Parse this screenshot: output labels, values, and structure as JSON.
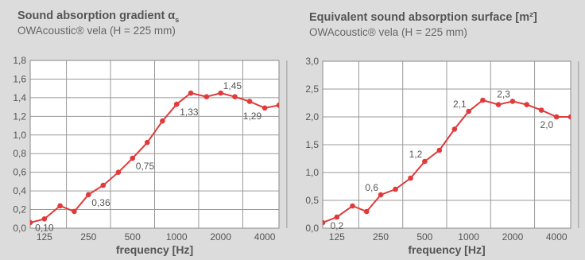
{
  "chart_data": [
    {
      "type": "line",
      "title": "Sound absorption gradient α",
      "title_subscript": "s",
      "subtitle": "OWAcoustic® vela (H = 225 mm)",
      "xlabel": "frequency [Hz]",
      "ylabel": "",
      "x_scale": "log",
      "xlim": [
        100,
        5000
      ],
      "ylim": [
        0,
        1.8
      ],
      "yticks": [
        0,
        0.2,
        0.4,
        0.6,
        0.8,
        1.0,
        1.2,
        1.4,
        1.6,
        1.8
      ],
      "ytick_labels": [
        "0,0",
        "0,2",
        "0,4",
        "0,6",
        "0,8",
        "1,0",
        "1,2",
        "1,4",
        "1,6",
        "1,8"
      ],
      "xticks": [
        125,
        250,
        500,
        1000,
        2000,
        4000
      ],
      "xtick_labels": [
        "125",
        "250",
        "500",
        "1000",
        "2000",
        "4000"
      ],
      "grid": true,
      "line_color": "#e03a3a",
      "x": [
        100,
        125,
        160,
        200,
        250,
        315,
        400,
        500,
        630,
        800,
        1000,
        1250,
        1600,
        2000,
        2500,
        3150,
        4000,
        5000
      ],
      "y": [
        0.06,
        0.1,
        0.24,
        0.18,
        0.36,
        0.46,
        0.6,
        0.75,
        0.92,
        1.15,
        1.33,
        1.45,
        1.41,
        1.45,
        1.41,
        1.36,
        1.29,
        1.32
      ],
      "annotations": [
        {
          "x": 125,
          "y": 0.1,
          "text": "0,10",
          "pos": "below"
        },
        {
          "x": 250,
          "y": 0.36,
          "text": "0,36",
          "pos": "below-right"
        },
        {
          "x": 500,
          "y": 0.75,
          "text": "0,75",
          "pos": "below-right"
        },
        {
          "x": 1000,
          "y": 1.33,
          "text": "1,33",
          "pos": "below-right"
        },
        {
          "x": 2000,
          "y": 1.45,
          "text": "1,45",
          "pos": "above-right"
        },
        {
          "x": 4000,
          "y": 1.29,
          "text": "1,29",
          "pos": "below-left"
        }
      ]
    },
    {
      "type": "line",
      "title": "Equivalent sound absorption surface [m²]",
      "subtitle": "OWAcoustic® vela (H = 225 mm)",
      "xlabel": "frequency [Hz]",
      "ylabel": "",
      "x_scale": "log",
      "xlim": [
        100,
        5000
      ],
      "ylim": [
        0,
        3.0
      ],
      "yticks": [
        0,
        0.5,
        1.0,
        1.5,
        2.0,
        2.5,
        3.0
      ],
      "ytick_labels": [
        "0,0",
        "0,5",
        "1,0",
        "1,5",
        "2,0",
        "2,5",
        "3,0"
      ],
      "xticks": [
        125,
        250,
        500,
        1000,
        2000,
        4000
      ],
      "xtick_labels": [
        "125",
        "250",
        "500",
        "1000",
        "2000",
        "4000"
      ],
      "grid": true,
      "line_color": "#e03a3a",
      "x": [
        100,
        125,
        160,
        200,
        250,
        315,
        400,
        500,
        630,
        800,
        1000,
        1250,
        1600,
        2000,
        2500,
        3150,
        4000,
        5000
      ],
      "y": [
        0.1,
        0.2,
        0.4,
        0.3,
        0.6,
        0.7,
        0.9,
        1.2,
        1.4,
        1.78,
        2.1,
        2.3,
        2.22,
        2.28,
        2.22,
        2.12,
        2.0,
        2.0
      ],
      "annotations": [
        {
          "x": 125,
          "y": 0.2,
          "text": "0,2",
          "pos": "below"
        },
        {
          "x": 250,
          "y": 0.6,
          "text": "0,6",
          "pos": "above-left"
        },
        {
          "x": 500,
          "y": 1.2,
          "text": "1,2",
          "pos": "above-left"
        },
        {
          "x": 1000,
          "y": 2.1,
          "text": "2,1",
          "pos": "above-left"
        },
        {
          "x": 2000,
          "y": 2.28,
          "text": "2,3",
          "pos": "above-left"
        },
        {
          "x": 4000,
          "y": 2.0,
          "text": "2,0",
          "pos": "below-left"
        }
      ]
    }
  ]
}
